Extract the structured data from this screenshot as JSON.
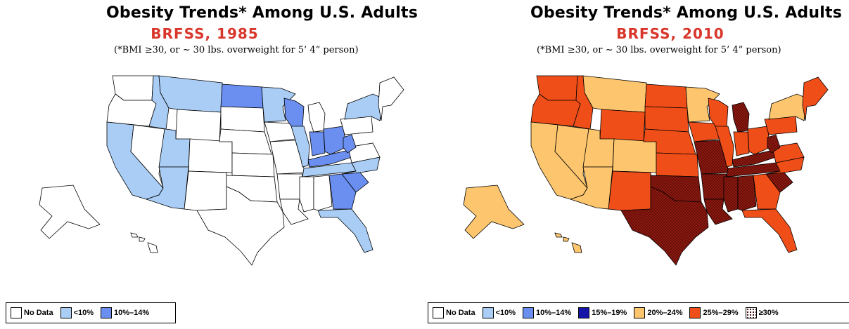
{
  "panels": [
    {
      "title": "Obesity Trends*  Among U.S. Adults",
      "subtitle": "BRFSS, 1985",
      "note": "(*BMI ≥30, or ~ 30 lbs. overweight for 5’ 4” person)",
      "legend": [
        {
          "label": "No Data",
          "color": "#ffffff"
        },
        {
          "label": "<10%",
          "color": "#a9cdf5"
        },
        {
          "label": "10%–14%",
          "color": "#6b8ff0"
        }
      ]
    },
    {
      "title": "Obesity Trends*  Among U.S. Adults",
      "subtitle": "BRFSS, 2010",
      "note": "(*BMI ≥30, or ~ 30 lbs. overweight for 5’ 4” person)",
      "legend": [
        {
          "label": "No Data",
          "color": "#ffffff"
        },
        {
          "label": "<10%",
          "color": "#a9cdf5"
        },
        {
          "label": "10%–14%",
          "color": "#6b8ff0"
        },
        {
          "label": "15%–19%",
          "color": "#1515a8"
        },
        {
          "label": "20%–24%",
          "color": "#fcc56e"
        },
        {
          "label": "25%–29%",
          "color": "#f04e18"
        },
        {
          "label": "≥30%",
          "color": "#8c1a10",
          "pattern": "dots"
        }
      ]
    }
  ],
  "states_1985": {
    "WA": "#ffffff",
    "OR": "#ffffff",
    "CA": "#a9cdf5",
    "NV": "#ffffff",
    "ID": "#a9cdf5",
    "MT": "#a9cdf5",
    "WY": "#ffffff",
    "UT": "#a9cdf5",
    "AZ": "#a9cdf5",
    "CO": "#ffffff",
    "NM": "#ffffff",
    "ND": "#6b8ff0",
    "SD": "#ffffff",
    "NE": "#ffffff",
    "KS": "#ffffff",
    "OK": "#ffffff",
    "TX": "#ffffff",
    "MN": "#a9cdf5",
    "IA": "#ffffff",
    "MO": "#ffffff",
    "AR": "#ffffff",
    "LA": "#ffffff",
    "WI": "#6b8ff0",
    "IL": "#a9cdf5",
    "MI": "#ffffff",
    "IN": "#6b8ff0",
    "OH": "#6b8ff0",
    "KY": "#6b8ff0",
    "TN": "#a9cdf5",
    "MS": "#ffffff",
    "AL": "#ffffff",
    "GA": "#6b8ff0",
    "FL": "#a9cdf5",
    "SC": "#6b8ff0",
    "NC": "#a9cdf5",
    "VA": "#ffffff",
    "WV": "#6b8ff0",
    "PA": "#ffffff",
    "NY": "#a9cdf5",
    "NE_states": "#ffffff",
    "AK": "#ffffff",
    "HI": "#ffffff"
  },
  "states_2010": {
    "WA": "#f04e18",
    "OR": "#f04e18",
    "CA": "#fcc56e",
    "NV": "#fcc56e",
    "ID": "#f04e18",
    "MT": "#fcc56e",
    "WY": "#f04e18",
    "UT": "#fcc56e",
    "AZ": "#fcc56e",
    "CO": "#fcc56e",
    "NM": "#f04e18",
    "ND": "#f04e18",
    "SD": "#f04e18",
    "NE": "#f04e18",
    "KS": "#f04e18",
    "OK": "dots",
    "TX": "dots",
    "MN": "#fcc56e",
    "IA": "#f04e18",
    "MO": "dots",
    "AR": "dots",
    "LA": "dots",
    "WI": "#f04e18",
    "IL": "#f04e18",
    "MI": "dots",
    "IN": "#f04e18",
    "OH": "#f04e18",
    "KY": "dots",
    "TN": "dots",
    "MS": "dots",
    "AL": "dots",
    "GA": "#f04e18",
    "FL": "#f04e18",
    "SC": "dots",
    "NC": "#f04e18",
    "VA": "#f04e18",
    "WV": "dots",
    "PA": "#f04e18",
    "NY": "#fcc56e",
    "NE_states": "#f04e18",
    "AK": "#fcc56e",
    "HI": "#fcc56e"
  }
}
